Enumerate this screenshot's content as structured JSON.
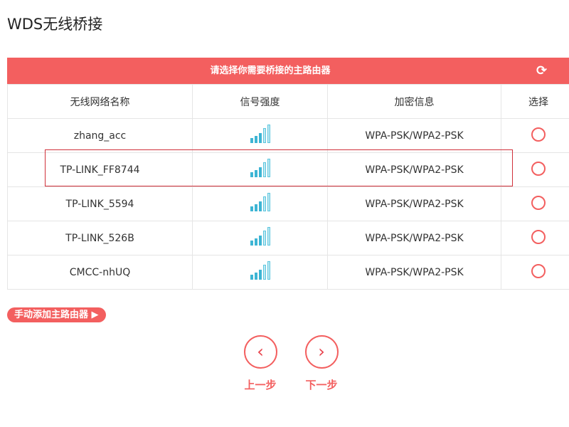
{
  "title": "WDS无线桥接",
  "banner": {
    "text": "请选择你需要桥接的主路由器",
    "refresh_icon": "refresh-icon"
  },
  "columns": [
    "无线网络名称",
    "信号强度",
    "加密信息",
    "选择"
  ],
  "rows": [
    {
      "ssid": "zhang_acc",
      "signal": 3,
      "security": "WPA-PSK/WPA2-PSK"
    },
    {
      "ssid": "TP-LINK_FF8744",
      "signal": 3,
      "security": "WPA-PSK/WPA2-PSK"
    },
    {
      "ssid": "TP-LINK_5594",
      "signal": 3,
      "security": "WPA-PSK/WPA2-PSK"
    },
    {
      "ssid": "TP-LINK_526B",
      "signal": 3,
      "security": "WPA-PSK/WPA2-PSK"
    },
    {
      "ssid": "CMCC-nhUQ",
      "signal": 3,
      "security": "WPA-PSK/WPA2-PSK"
    }
  ],
  "highlighted_row": 1,
  "add_button": "手动添加主路由器 ▶",
  "prev": {
    "icon": "‹",
    "label": "上一步"
  },
  "next": {
    "icon": "›",
    "label": "下一步"
  },
  "colors": {
    "accent": "#f35f5f",
    "signal": "#3db5d4"
  }
}
